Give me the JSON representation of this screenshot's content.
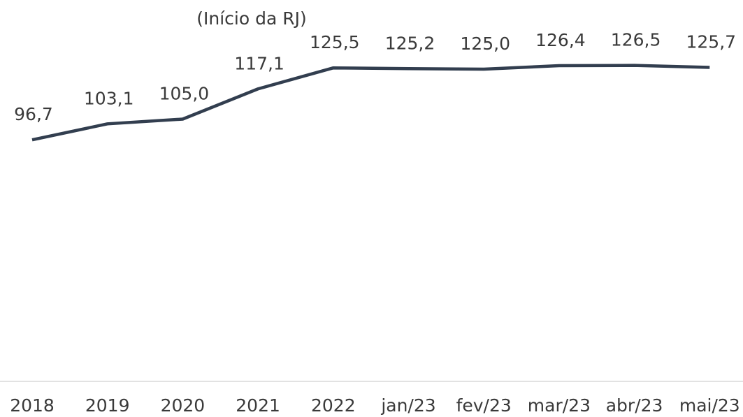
{
  "chart_data": {
    "type": "line",
    "annotation": "(Início da RJ)",
    "categories": [
      "2018",
      "2019",
      "2020",
      "2021",
      "2022",
      "jan/23",
      "fev/23",
      "mar/23",
      "abr/23",
      "mai/23"
    ],
    "series": [
      {
        "color": "#323e4f",
        "values": [
          96.7,
          103.1,
          105.0,
          117.1,
          125.5,
          125.2,
          125.0,
          126.4,
          126.5,
          125.7
        ],
        "value_labels": [
          "96,7",
          "103,1",
          "105,0",
          "117,1",
          "125,5",
          "125,2",
          "125,0",
          "126,4",
          "126,5",
          "125,7"
        ]
      }
    ],
    "ylim": [
      0,
      150
    ]
  }
}
